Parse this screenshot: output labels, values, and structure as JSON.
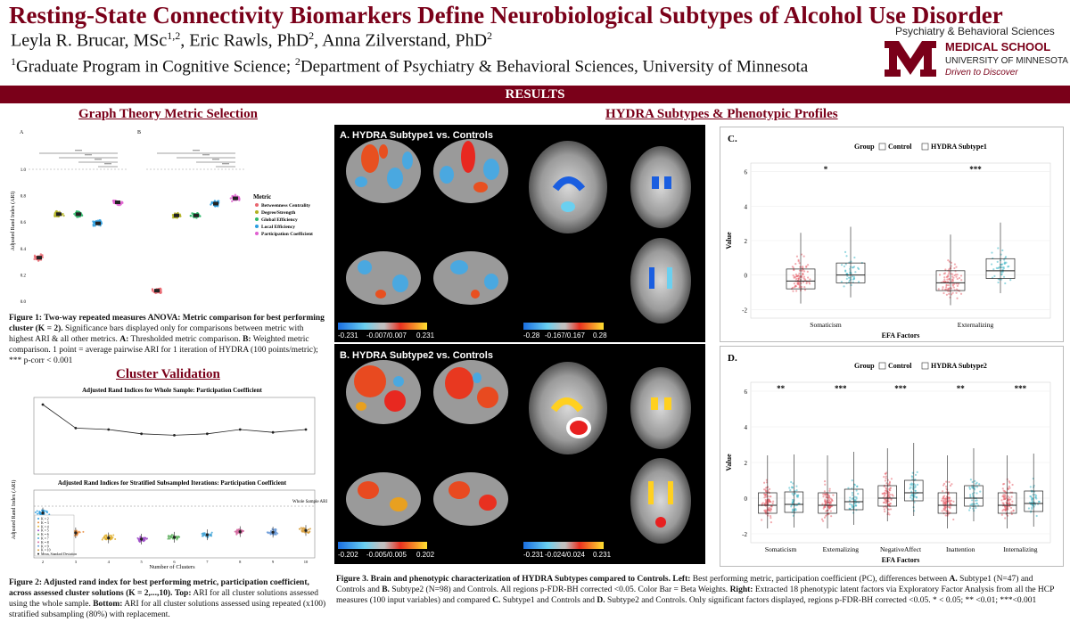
{
  "header": {
    "title": "Resting-State Connectivity Biomarkers Define Neurobiological Subtypes of Alcohol Use Disorder",
    "authors": [
      {
        "name": "Leyla R. Brucar, MSc",
        "sup": "1,2"
      },
      {
        "name": "Eric Rawls, PhD",
        "sup": "2"
      },
      {
        "name": "Anna Zilverstand, PhD",
        "sup": "2"
      }
    ],
    "affiliations": [
      {
        "sup": "1",
        "text": "Graduate Program in Cognitive Science; "
      },
      {
        "sup": "2",
        "text": "Department of Psychiatry & Behavioral Sciences, University of Minnesota"
      }
    ],
    "logo": {
      "department": "Psychiatry & Behavioral Sciences",
      "school": "MEDICAL SCHOOL",
      "university": "UNIVERSITY OF MINNESOTA",
      "tagline": "Driven to Discover",
      "brand_color": "#7a0019",
      "icon": "umn-m-logo-icon"
    }
  },
  "results_bar": "RESULTS",
  "graph_theory": {
    "section_title": "Graph Theory Metric Selection",
    "panel_a_label": "A",
    "panel_b_label": "B",
    "significance": "****",
    "ylabel": "Adjusted Rand Index (ARI)",
    "legend_title": "Metric",
    "caption_bold": "Figure 1: Two-way repeated measures ANOVA: Metric comparison for best performing cluster (K = 2).",
    "caption_text": " Significance bars displayed only for comparisons between metric with highest ARI & all other metrics. ",
    "caption_a": "A:",
    "caption_a_text": " Thresholded metric comparison. ",
    "caption_b": "B:",
    "caption_b_text": " Weighted metric comparison. 1 point = average pairwise ARI for 1 iteration of HYDRA (100 points/metric); *** p-corr < 0.001"
  },
  "cluster_validation": {
    "section_title": "Cluster Validation",
    "top_title": "Adjusted Rand Indices for Whole Sample: Participation Coefficient",
    "bottom_title": "Adjusted Rand Indices for Stratified Subsampled Iterations: Participation Coefficient",
    "ylabel": "Adjusted Rand Index (ARI)",
    "xlabel": "Number of Clusters",
    "ref_line_label": "Whole Sample ARI",
    "legend": [
      "K = 2",
      "K = 3",
      "K = 4",
      "K = 5",
      "K = 6",
      "K = 7",
      "K = 8",
      "K = 9",
      "K = 10",
      "Mean, Standard Deviation"
    ],
    "caption_bold": "Figure 2: Adjusted rand index for best performing metric, participation coefficient, across assessed cluster solutions (K = 2,...,10).",
    "caption_top": "Top:",
    "caption_top_text": " ARI for all cluster solutions assessed using the whole sample. ",
    "caption_bottom": "Bottom:",
    "caption_bottom_text": " ARI for all cluster solutions assessed using repeated (x100) stratified subsampling (80%) with replacement."
  },
  "hydra": {
    "section_title": "HYDRA Subtypes & Phenotypic Profiles",
    "brain_a_title": "A. HYDRA Subtype1 vs. Controls",
    "brain_b_title": "B. HYDRA Subtype2 vs. Controls",
    "cb_a_cortex": [
      "-0.231",
      "-0.007/0.007",
      "0.231"
    ],
    "cb_a_sub": [
      "-0.28",
      "-0.167/0.167",
      "0.28"
    ],
    "cb_b_cortex": [
      "-0.202",
      "-0.005/0.005",
      "0.202"
    ],
    "cb_b_sub": [
      "-0.231",
      "-0.024/0.024",
      "0.231"
    ],
    "caption_bold": "Figure 3. Brain and phenotypic characterization of HYDRA Subtypes compared to Controls.",
    "caption_left": " Left:",
    "caption_text1": " Best performing metric, participation coefficient (PC), differences between ",
    "caption_a": "A.",
    "caption_text2": " Subtype1 (N=47) and Controls and ",
    "caption_b": "B.",
    "caption_text3": " Subtype2 (N=98) and Controls. All regions p-FDR-BH corrected <0.05. Color Bar = Beta Weights. ",
    "caption_right": "Right:",
    "caption_text4": " Extracted 18 phenotypic latent factors via Exploratory Factor Analysis from all the HCP measures (100 input variables) and compared ",
    "caption_c": "C.",
    "caption_text5": " Subtype1 and Controls and ",
    "caption_d": "D.",
    "caption_text6": " Subtype2 and Controls. Only significant factors displayed, regions p-FDR-BH corrected <0.05. * < 0.05; ** <0.01; ***<0.001"
  },
  "colors": {
    "maroon": "#7a0019",
    "control": "#e8666f",
    "subtype": "#3fb8c8"
  },
  "chart_data": [
    {
      "id": "fig1a",
      "type": "scatter",
      "title": "",
      "panel": "A",
      "xlabel": "",
      "ylabel": "Adjusted Rand Index (ARI)",
      "ylim": [
        0,
        1
      ],
      "yticks": [
        "0.0",
        "0.2",
        "0.4",
        "0.6",
        "0.8",
        "1.0"
      ],
      "series": [
        {
          "name": "Betweenness Centrality",
          "color": "#e8666f",
          "mean": 0.33
        },
        {
          "name": "Degree/Strength",
          "color": "#b0b020",
          "mean": 0.66
        },
        {
          "name": "Global Efficiency",
          "color": "#2fb86c",
          "mean": 0.66
        },
        {
          "name": "Local Efficiency",
          "color": "#2a9ee0",
          "mean": 0.59
        },
        {
          "name": "Participation Coefficient",
          "color": "#e060d0",
          "mean": 0.75
        }
      ]
    },
    {
      "id": "fig1b",
      "type": "scatter",
      "title": "",
      "panel": "B",
      "ylim": [
        0,
        1
      ],
      "series": [
        {
          "name": "Betweenness Centrality",
          "color": "#e8666f",
          "mean": 0.08
        },
        {
          "name": "Degree/Strength",
          "color": "#b0b020",
          "mean": 0.65
        },
        {
          "name": "Global Efficiency",
          "color": "#2fb86c",
          "mean": 0.65
        },
        {
          "name": "Local Efficiency",
          "color": "#2a9ee0",
          "mean": 0.74
        },
        {
          "name": "Participation Coefficient",
          "color": "#e060d0",
          "mean": 0.78
        }
      ],
      "legend_placement": "right"
    },
    {
      "id": "fig2top",
      "type": "line",
      "title": "Adjusted Rand Indices for Whole Sample: Participation Coefficient",
      "x": [
        2,
        3,
        4,
        5,
        6,
        7,
        8,
        9,
        10
      ],
      "values": [
        0.95,
        0.62,
        0.6,
        0.54,
        0.52,
        0.54,
        0.6,
        0.56,
        0.6
      ],
      "ylim": [
        0,
        1
      ]
    },
    {
      "id": "fig2bottom",
      "type": "scatter",
      "title": "Adjusted Rand Indices for Stratified Subsampled Iterations: Participation Coefficient",
      "xlabel": "Number of Clusters",
      "x": [
        2,
        3,
        4,
        5,
        6,
        7,
        8,
        9,
        10
      ],
      "means": [
        0.72,
        0.4,
        0.32,
        0.3,
        0.33,
        0.37,
        0.42,
        0.41,
        0.44
      ],
      "colors": [
        "#2a9ee0",
        "#e88a3a",
        "#e0b030",
        "#a050c8",
        "#60b060",
        "#4aa8d8",
        "#d46aa0",
        "#6a9ad8",
        "#d8a040"
      ]
    },
    {
      "id": "fig3c",
      "type": "box",
      "panel": "C.",
      "legend_title": "Group",
      "legend": [
        "Control",
        "HYDRA Subtype1"
      ],
      "xlabel": "EFA Factors",
      "ylabel": "Value",
      "categories": [
        "Somaticism",
        "Externalizing"
      ],
      "significance": [
        "*",
        "***"
      ],
      "yticks": [
        "-2",
        "0",
        "2",
        "4",
        "6"
      ],
      "ylim": [
        -2.5,
        6.5
      ],
      "control_median": [
        -0.35,
        -0.45
      ],
      "subtype_median": [
        0.0,
        0.25
      ]
    },
    {
      "id": "fig3d",
      "type": "box",
      "panel": "D.",
      "legend_title": "Group",
      "legend": [
        "Control",
        "HYDRA Subtype2"
      ],
      "xlabel": "EFA Factors",
      "ylabel": "Value",
      "categories": [
        "Somaticism",
        "Externalizing",
        "NegativeAffect",
        "Inattention",
        "Internalizing"
      ],
      "significance": [
        "**",
        "***",
        "***",
        "**",
        "***"
      ],
      "yticks": [
        "-2",
        "0",
        "2",
        "4",
        "6"
      ],
      "ylim": [
        -2.5,
        6.5
      ],
      "control_median": [
        -0.4,
        -0.4,
        0.0,
        -0.4,
        -0.4
      ],
      "subtype_median": [
        -0.35,
        -0.2,
        0.3,
        0.0,
        -0.3
      ]
    }
  ]
}
